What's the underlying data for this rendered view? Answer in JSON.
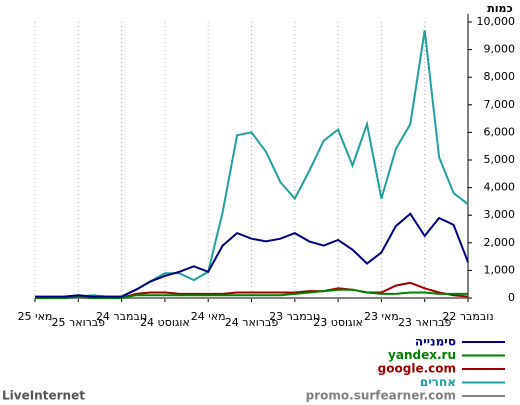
{
  "chart_data": {
    "type": "line",
    "y_title": "כמות",
    "source": "LiveInternet",
    "categories": [
      "מאי 25",
      null,
      null,
      "פברואר 25",
      null,
      null,
      "נובמבר 24",
      null,
      null,
      "אוגוסט 24",
      null,
      null,
      "מאי 24",
      null,
      null,
      "פברואר 24",
      null,
      null,
      "נובמבר 23",
      null,
      null,
      "אוגוסט 23",
      null,
      null,
      "מאי 23",
      null,
      null,
      "פברואר 23",
      null,
      null,
      "נובמבר 22"
    ],
    "series": [
      {
        "name": "סימנייה",
        "color": "#000080",
        "values": [
          50,
          50,
          50,
          100,
          50,
          50,
          50,
          300,
          600,
          800,
          950,
          1150,
          950,
          1900,
          2350,
          2150,
          2050,
          2150,
          2350,
          2050,
          1900,
          2100,
          1750,
          1250,
          1650,
          2600,
          3050,
          2250,
          2900,
          2650,
          1300
        ]
      },
      {
        "name": "yandex.ru",
        "color": "#008000",
        "values": [
          0,
          0,
          0,
          50,
          0,
          0,
          0,
          100,
          100,
          100,
          100,
          100,
          100,
          100,
          100,
          100,
          100,
          100,
          150,
          200,
          250,
          300,
          300,
          200,
          150,
          150,
          200,
          200,
          150,
          150,
          150
        ]
      },
      {
        "name": "google.com",
        "color": "#a00000",
        "values": [
          0,
          0,
          0,
          50,
          0,
          0,
          0,
          150,
          200,
          200,
          150,
          150,
          150,
          150,
          200,
          200,
          200,
          200,
          200,
          250,
          250,
          350,
          300,
          200,
          200,
          450,
          550,
          350,
          200,
          100,
          50
        ]
      },
      {
        "name": "אחרים",
        "color": "#20a0a0",
        "values": [
          0,
          0,
          0,
          50,
          100,
          50,
          50,
          300,
          600,
          900,
          900,
          650,
          950,
          3100,
          5900,
          6000,
          5300,
          4200,
          3600,
          4600,
          5700,
          6100,
          4800,
          6300,
          3600,
          5400,
          6300,
          9700,
          5100,
          3800,
          3400
        ]
      },
      {
        "name": "promo.surfearner.com",
        "color": "#808080",
        "values": [
          0,
          0,
          0,
          0,
          0,
          0,
          0,
          0,
          0,
          0,
          0,
          0,
          0,
          0,
          0,
          0,
          0,
          0,
          0,
          0,
          0,
          0,
          0,
          0,
          0,
          0,
          0,
          0,
          0,
          0,
          0
        ]
      }
    ],
    "ylim": [
      0,
      10000
    ],
    "yticks": [
      0,
      {
        "value": 1000,
        "label": "1,000"
      },
      {
        "value": 2000,
        "label": "2,000"
      },
      {
        "value": 3000,
        "label": "3,000"
      },
      {
        "value": 4000,
        "label": "4,000"
      },
      {
        "value": 5000,
        "label": "5,000"
      },
      {
        "value": 6000,
        "label": "6,000"
      },
      {
        "value": 7000,
        "label": "7,000"
      },
      {
        "value": 8000,
        "label": "8,000"
      },
      {
        "value": 9000,
        "label": "9,000"
      },
      {
        "value": 10000,
        "label": "10,000"
      }
    ],
    "grid": true
  }
}
